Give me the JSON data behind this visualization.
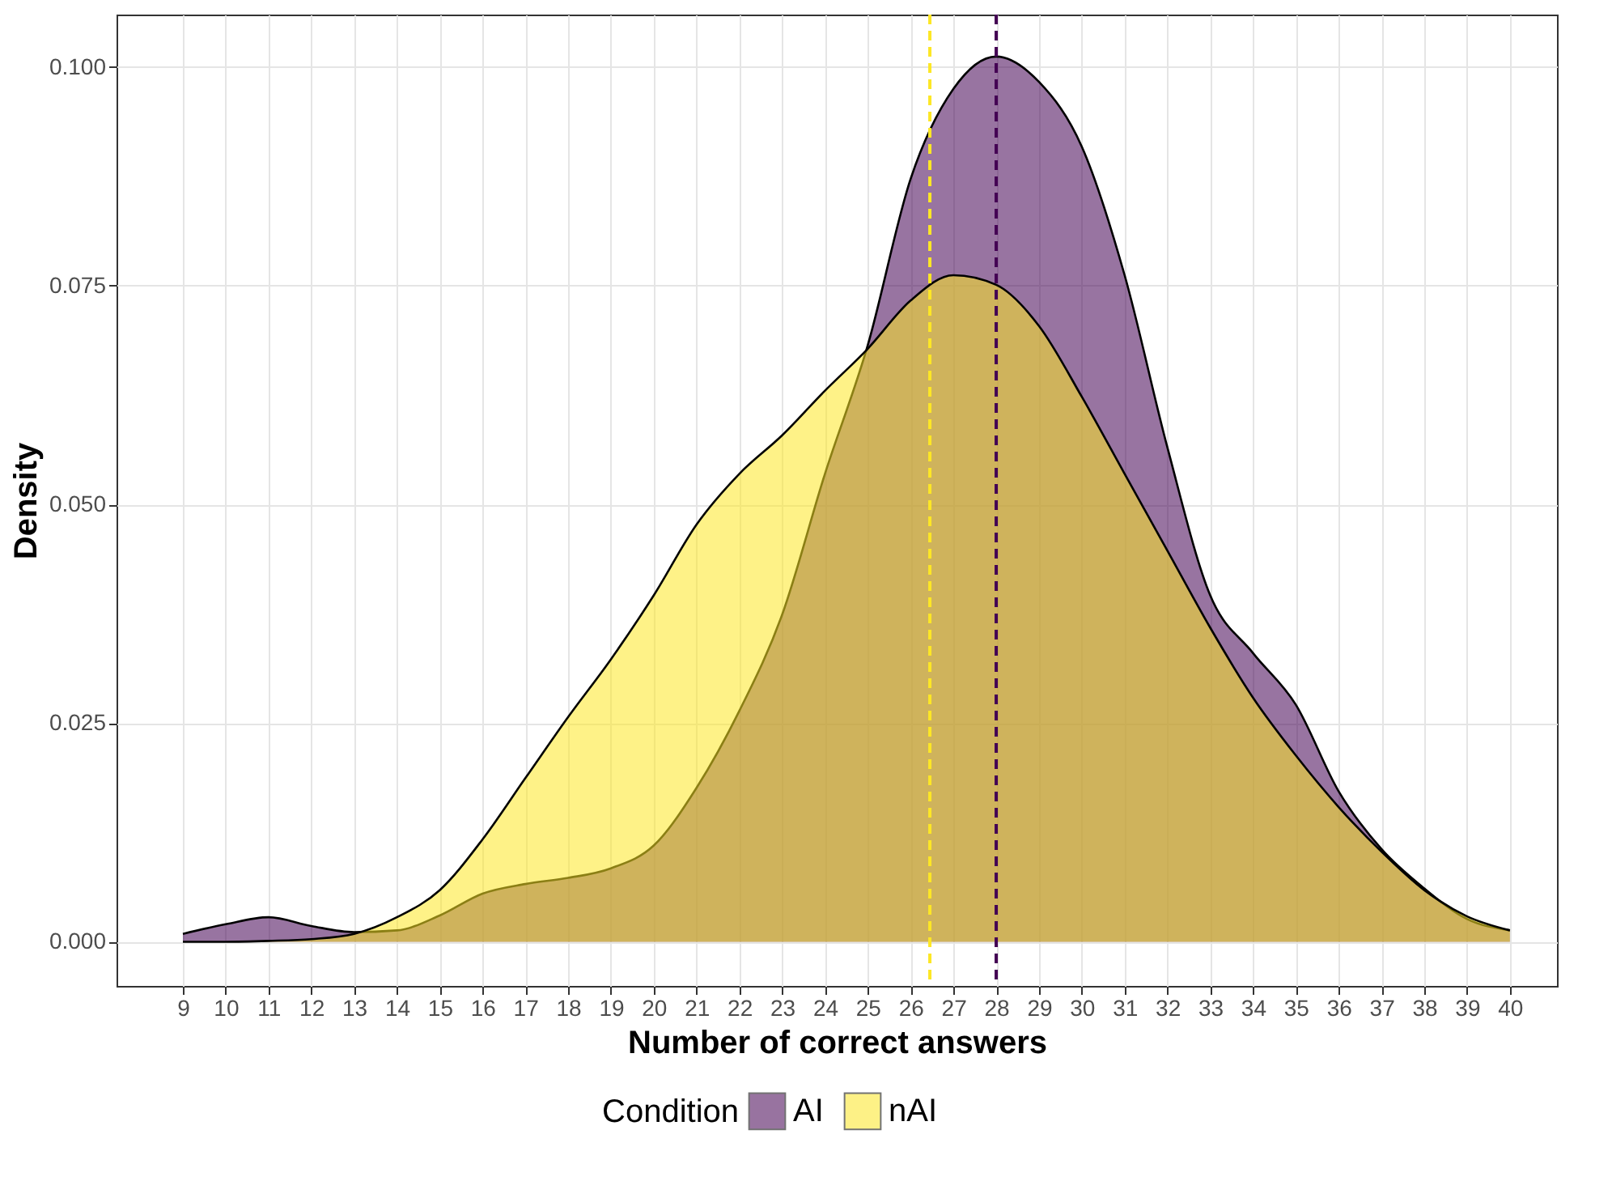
{
  "chart_data": {
    "type": "area",
    "xlabel": "Number of correct answers",
    "ylabel": "Density",
    "legend_title": "Condition",
    "x": [
      9,
      10,
      11,
      12,
      13,
      14,
      15,
      16,
      17,
      18,
      19,
      20,
      21,
      22,
      23,
      24,
      25,
      26,
      27,
      28,
      29,
      30,
      31,
      32,
      33,
      34,
      35,
      36,
      37,
      38,
      39,
      40
    ],
    "series": [
      {
        "name": "AI",
        "color": "#440154",
        "values": [
          0.0009,
          0.002,
          0.0028,
          0.0018,
          0.0011,
          0.0013,
          0.003,
          0.0055,
          0.0066,
          0.0073,
          0.0084,
          0.011,
          0.0176,
          0.0264,
          0.0374,
          0.0535,
          0.0682,
          0.0872,
          0.0975,
          0.1012,
          0.0983,
          0.0909,
          0.0762,
          0.0565,
          0.0396,
          0.033,
          0.0271,
          0.0172,
          0.0106,
          0.0061,
          0.0026,
          0.0013
        ]
      },
      {
        "name": "nAI",
        "color": "#fde725",
        "values": [
          0.0,
          0.0,
          0.0001,
          0.0003,
          0.0009,
          0.0028,
          0.0059,
          0.0117,
          0.0187,
          0.0257,
          0.0323,
          0.0396,
          0.0477,
          0.0535,
          0.0579,
          0.063,
          0.0678,
          0.0733,
          0.0762,
          0.0751,
          0.0704,
          0.0623,
          0.0535,
          0.0447,
          0.0359,
          0.0279,
          0.0213,
          0.0154,
          0.0103,
          0.0059,
          0.0029,
          0.0013
        ]
      }
    ],
    "ref_lines": [
      {
        "axis": "x",
        "value": 28,
        "color": "#440154",
        "line_style": "dashed"
      },
      {
        "axis": "x",
        "value": 26.45,
        "color": "#fde725",
        "line_style": "dashed"
      }
    ],
    "xlim": [
      7.45,
      41.1
    ],
    "ylim": [
      -0.00505,
      0.106
    ],
    "xticks": [
      9,
      10,
      11,
      12,
      13,
      14,
      15,
      16,
      17,
      18,
      19,
      20,
      21,
      22,
      23,
      24,
      25,
      26,
      27,
      28,
      29,
      30,
      31,
      32,
      33,
      34,
      35,
      36,
      37,
      38,
      39,
      40
    ],
    "yticks": [
      {
        "value": 0,
        "label": "0.000"
      },
      {
        "value": 0.025,
        "label": "0.025"
      },
      {
        "value": 0.05,
        "label": "0.050"
      },
      {
        "value": 0.075,
        "label": "0.075"
      },
      {
        "value": 0.1,
        "label": "0.100"
      }
    ],
    "grid": true,
    "legend": "bottom"
  }
}
